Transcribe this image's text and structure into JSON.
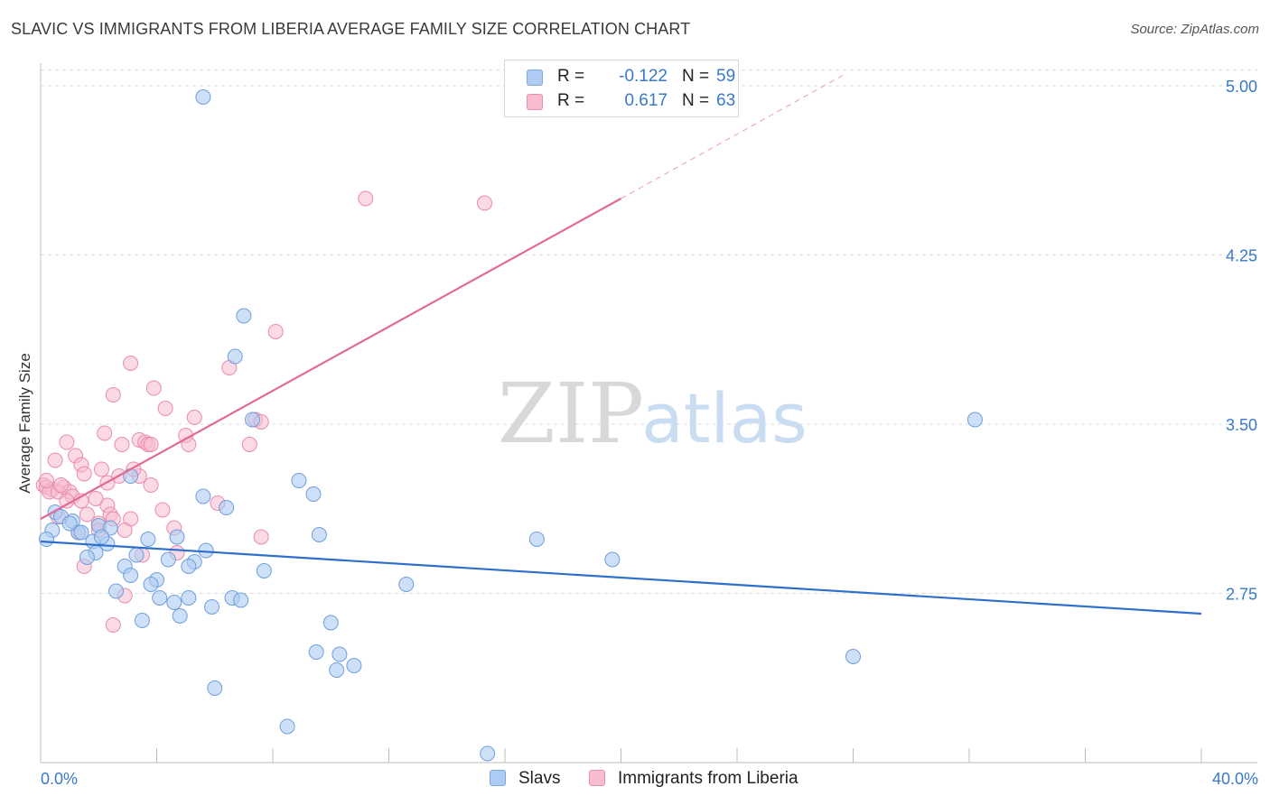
{
  "title": "SLAVIC VS IMMIGRANTS FROM LIBERIA AVERAGE FAMILY SIZE CORRELATION CHART",
  "source": "Source: ZipAtlas.com",
  "watermark": {
    "zip": "ZIP",
    "atlas": "atlas"
  },
  "legend_top": [
    {
      "r_label": "R =",
      "r_value": "-0.122",
      "n_label": "N =",
      "n_value": "59"
    },
    {
      "r_label": "R =",
      "r_value": "0.617",
      "n_label": "N =",
      "n_value": "63"
    }
  ],
  "legend_bottom": [
    {
      "label": "Slavs"
    },
    {
      "label": "Immigrants from Liberia"
    }
  ],
  "colors": {
    "slavs_fill": "#aecbf2",
    "slavs_stroke": "#6f9fdc",
    "slavs_line": "#2f6fcc",
    "liberia_fill": "#f7bcd0",
    "liberia_stroke": "#e98bad",
    "liberia_line": "#e36a93",
    "tick_label": "#3a78c9",
    "grid": "#dddddd"
  },
  "chart_data": {
    "type": "scatter",
    "title": "SLAVIC VS IMMIGRANTS FROM LIBERIA AVERAGE FAMILY SIZE CORRELATION CHART",
    "xlabel": "",
    "ylabel": "Average Family Size",
    "xlim": [
      0,
      40
    ],
    "ylim": [
      2.0,
      5.1
    ],
    "x_tick_labels": [
      "0.0%",
      "40.0%"
    ],
    "y_ticks": [
      2.75,
      3.5,
      4.25,
      5.0
    ],
    "y_tick_labels": [
      "2.75",
      "3.50",
      "4.25",
      "5.00"
    ],
    "grid": true,
    "series": [
      {
        "name": "Slavs",
        "r": -0.122,
        "n": 59,
        "trend": {
          "x": [
            0,
            40
          ],
          "y": [
            2.98,
            2.66
          ]
        },
        "points": [
          [
            5.6,
            4.95
          ],
          [
            7.0,
            3.98
          ],
          [
            6.7,
            3.8
          ],
          [
            7.3,
            3.52
          ],
          [
            32.2,
            3.52
          ],
          [
            3.1,
            3.27
          ],
          [
            8.9,
            3.25
          ],
          [
            9.4,
            3.19
          ],
          [
            5.6,
            3.18
          ],
          [
            6.4,
            3.13
          ],
          [
            0.5,
            3.11
          ],
          [
            0.7,
            3.09
          ],
          [
            1.1,
            3.07
          ],
          [
            2.0,
            3.05
          ],
          [
            2.4,
            3.04
          ],
          [
            0.4,
            3.03
          ],
          [
            1.3,
            3.02
          ],
          [
            1.4,
            3.02
          ],
          [
            9.6,
            3.01
          ],
          [
            4.7,
            3.0
          ],
          [
            3.7,
            2.99
          ],
          [
            17.1,
            2.99
          ],
          [
            1.8,
            2.98
          ],
          [
            2.3,
            2.97
          ],
          [
            5.7,
            2.94
          ],
          [
            1.9,
            2.93
          ],
          [
            3.3,
            2.92
          ],
          [
            1.6,
            2.91
          ],
          [
            4.4,
            2.9
          ],
          [
            19.7,
            2.9
          ],
          [
            5.3,
            2.89
          ],
          [
            5.1,
            2.87
          ],
          [
            2.9,
            2.87
          ],
          [
            7.7,
            2.85
          ],
          [
            3.1,
            2.83
          ],
          [
            4.0,
            2.81
          ],
          [
            3.8,
            2.79
          ],
          [
            12.6,
            2.79
          ],
          [
            2.6,
            2.76
          ],
          [
            4.1,
            2.73
          ],
          [
            5.1,
            2.73
          ],
          [
            6.6,
            2.73
          ],
          [
            4.6,
            2.71
          ],
          [
            5.9,
            2.69
          ],
          [
            4.8,
            2.65
          ],
          [
            3.5,
            2.63
          ],
          [
            10.0,
            2.62
          ],
          [
            9.5,
            2.49
          ],
          [
            10.3,
            2.48
          ],
          [
            10.8,
            2.43
          ],
          [
            10.2,
            2.41
          ],
          [
            28.0,
            2.47
          ],
          [
            6.0,
            2.33
          ],
          [
            8.5,
            2.16
          ],
          [
            15.4,
            2.04
          ],
          [
            0.2,
            2.99
          ],
          [
            1.0,
            3.06
          ],
          [
            2.1,
            3.0
          ],
          [
            6.9,
            2.72
          ]
        ]
      },
      {
        "name": "Immigrants from Liberia",
        "r": 0.617,
        "n": 63,
        "trend": {
          "x": [
            0,
            20
          ],
          "y": [
            3.08,
            4.5
          ]
        },
        "trend_dashed": {
          "x": [
            20,
            27.7
          ],
          "y": [
            4.5,
            5.05
          ]
        },
        "points": [
          [
            11.2,
            4.5
          ],
          [
            15.3,
            4.48
          ],
          [
            8.1,
            3.91
          ],
          [
            3.1,
            3.77
          ],
          [
            6.5,
            3.75
          ],
          [
            3.9,
            3.66
          ],
          [
            2.5,
            3.63
          ],
          [
            4.3,
            3.57
          ],
          [
            5.3,
            3.53
          ],
          [
            7.4,
            3.52
          ],
          [
            7.6,
            3.51
          ],
          [
            2.2,
            3.46
          ],
          [
            5.0,
            3.45
          ],
          [
            3.4,
            3.43
          ],
          [
            3.6,
            3.42
          ],
          [
            0.9,
            3.42
          ],
          [
            5.1,
            3.41
          ],
          [
            7.2,
            3.41
          ],
          [
            3.7,
            3.41
          ],
          [
            3.8,
            3.41
          ],
          [
            0.5,
            3.34
          ],
          [
            1.2,
            3.36
          ],
          [
            1.4,
            3.32
          ],
          [
            2.1,
            3.3
          ],
          [
            1.5,
            3.28
          ],
          [
            2.7,
            3.27
          ],
          [
            3.4,
            3.27
          ],
          [
            2.3,
            3.24
          ],
          [
            3.8,
            3.23
          ],
          [
            0.1,
            3.23
          ],
          [
            0.2,
            3.22
          ],
          [
            0.4,
            3.21
          ],
          [
            0.8,
            3.22
          ],
          [
            0.3,
            3.2
          ],
          [
            0.6,
            3.2
          ],
          [
            1.0,
            3.2
          ],
          [
            1.1,
            3.18
          ],
          [
            0.9,
            3.16
          ],
          [
            1.4,
            3.16
          ],
          [
            6.1,
            3.15
          ],
          [
            2.3,
            3.14
          ],
          [
            4.2,
            3.12
          ],
          [
            2.4,
            3.1
          ],
          [
            0.6,
            3.09
          ],
          [
            2.5,
            3.08
          ],
          [
            3.1,
            3.08
          ],
          [
            2.0,
            3.06
          ],
          [
            4.6,
            3.04
          ],
          [
            2.9,
            3.03
          ],
          [
            7.6,
            3.0
          ],
          [
            2.0,
            3.03
          ],
          [
            4.7,
            2.93
          ],
          [
            3.5,
            2.92
          ],
          [
            1.5,
            2.87
          ],
          [
            2.9,
            2.74
          ],
          [
            2.5,
            2.61
          ],
          [
            1.3,
            3.02
          ],
          [
            0.2,
            3.25
          ],
          [
            0.7,
            3.23
          ],
          [
            1.6,
            3.1
          ],
          [
            2.8,
            3.41
          ],
          [
            3.2,
            3.3
          ],
          [
            1.9,
            3.17
          ]
        ]
      }
    ]
  }
}
